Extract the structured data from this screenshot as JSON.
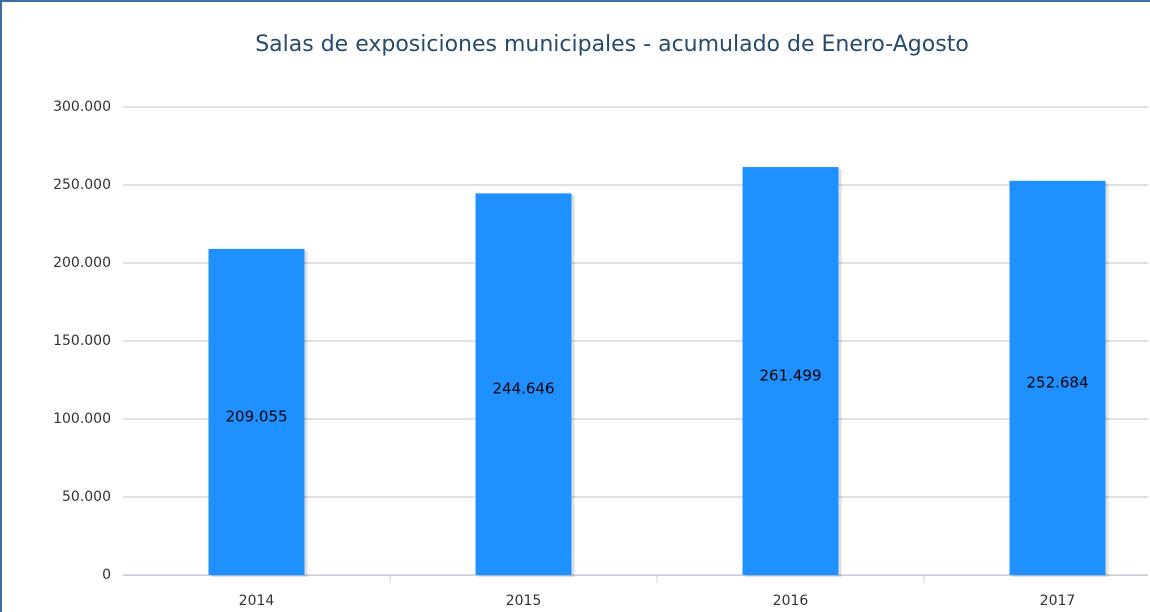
{
  "chart_data": {
    "type": "bar",
    "title": "Salas de exposiciones municipales - acumulado de Enero-Agosto",
    "categories": [
      "2014",
      "2015",
      "2016",
      "2017"
    ],
    "values": [
      209055,
      244646,
      261499,
      252684
    ],
    "value_labels": [
      "209.055",
      "244.646",
      "261.499",
      "252.684"
    ],
    "color": "#1e90ff",
    "ylim": [
      0,
      300000
    ],
    "yticks": [
      0,
      {
        "value": 50000,
        "label": "50.000"
      },
      {
        "value": 100000,
        "label": "100.000"
      },
      {
        "value": 150000,
        "label": "150.000"
      },
      {
        "value": 200000,
        "label": "200.000"
      },
      {
        "value": 250000,
        "label": "250.000"
      },
      {
        "value": 300000,
        "label": "300.000"
      }
    ],
    "grid": true
  }
}
